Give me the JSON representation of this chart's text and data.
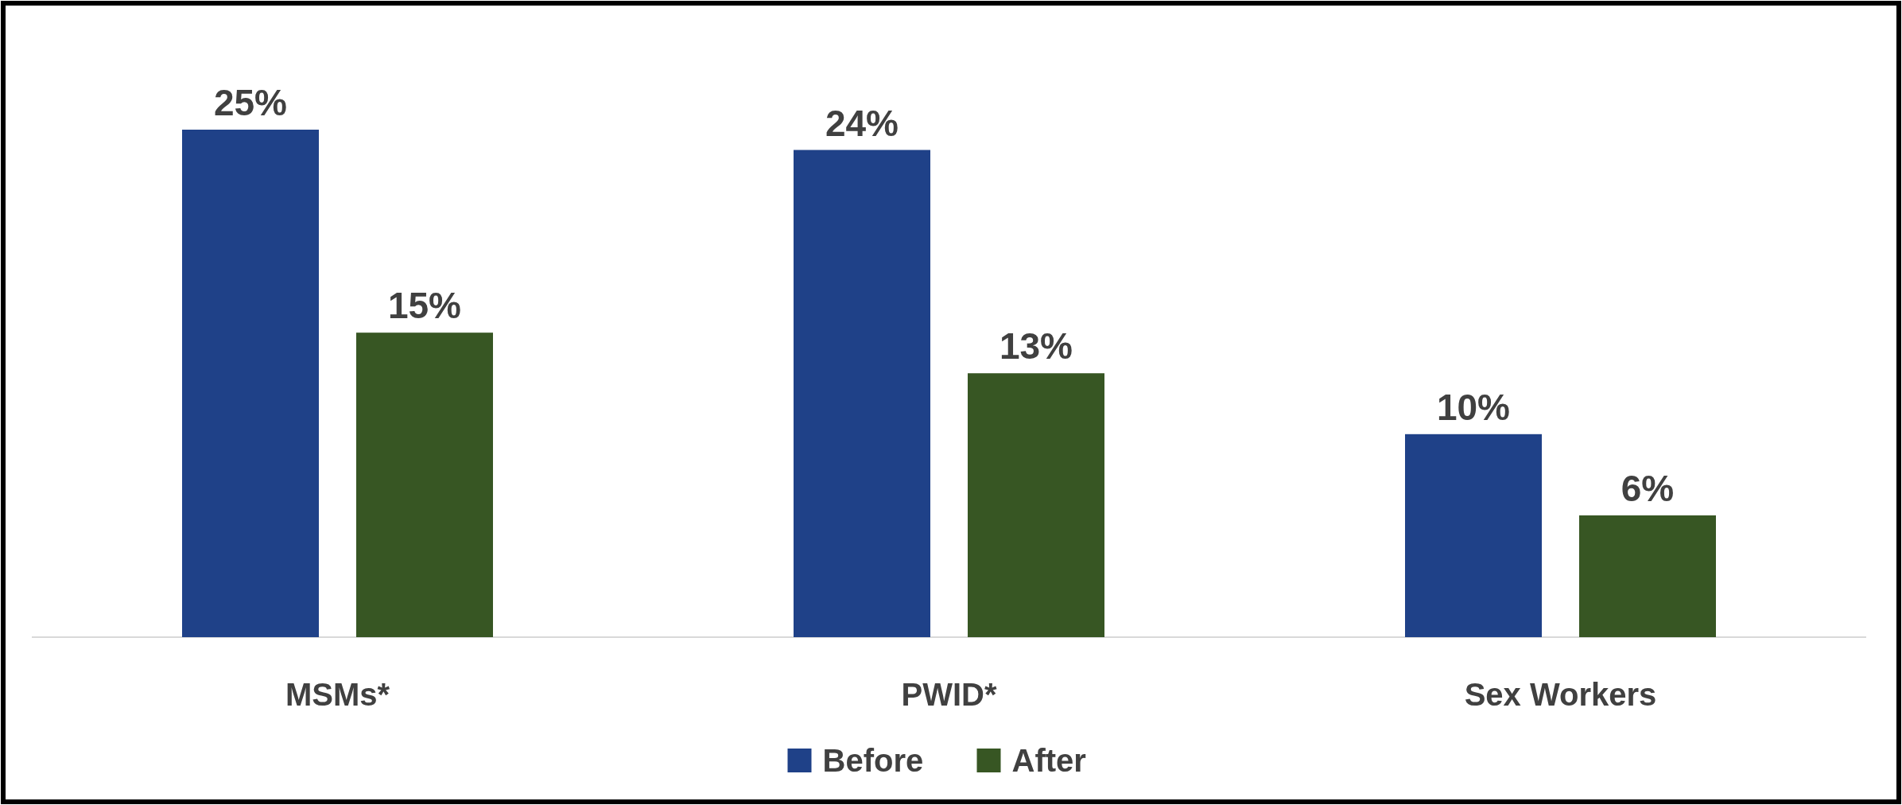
{
  "chart_data": {
    "type": "bar",
    "categories": [
      "MSMs*",
      "PWID*",
      "Sex Workers"
    ],
    "series": [
      {
        "name": "Before",
        "color": "#1f4188",
        "values": [
          25,
          24,
          10
        ],
        "value_labels": [
          "25%",
          "24%",
          "10%"
        ]
      },
      {
        "name": "After",
        "color": "#375623",
        "values": [
          15,
          13,
          6
        ],
        "value_labels": [
          "15%",
          "13%",
          "6%"
        ]
      }
    ],
    "legend": "bottom"
  }
}
